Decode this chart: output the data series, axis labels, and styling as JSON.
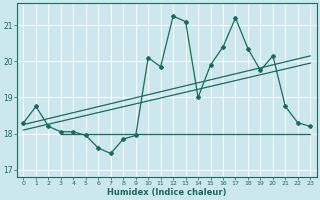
{
  "xlabel": "Humidex (Indice chaleur)",
  "background_color": "#cce8ee",
  "line_color": "#1a6b5e",
  "grid_color": "#ffffff",
  "xlim": [
    -0.5,
    23.5
  ],
  "ylim": [
    16.8,
    21.6
  ],
  "yticks": [
    17,
    18,
    19,
    20,
    21
  ],
  "xticks": [
    0,
    1,
    2,
    3,
    4,
    5,
    6,
    7,
    8,
    9,
    10,
    11,
    12,
    13,
    14,
    15,
    16,
    17,
    18,
    19,
    20,
    21,
    22,
    23
  ],
  "main_line_x": [
    0,
    1,
    2,
    3,
    4,
    5,
    6,
    7,
    8,
    9,
    10,
    11,
    12,
    13,
    14,
    15,
    16,
    17,
    18,
    19,
    20,
    21,
    22,
    23
  ],
  "main_line_y": [
    18.3,
    18.75,
    18.2,
    18.05,
    18.05,
    17.95,
    17.6,
    17.45,
    17.85,
    17.95,
    20.1,
    19.85,
    21.25,
    21.1,
    19.0,
    19.9,
    20.4,
    21.2,
    20.35,
    19.75,
    20.15,
    18.75,
    18.3,
    18.2
  ],
  "flat_line_y": 18.0,
  "flat_line_x_start": 3,
  "flat_line_x_end": 23,
  "trend_line1_x": [
    0,
    23
  ],
  "trend_line1_y": [
    18.1,
    19.95
  ],
  "trend_line2_x": [
    0,
    23
  ],
  "trend_line2_y": [
    18.25,
    20.15
  ]
}
